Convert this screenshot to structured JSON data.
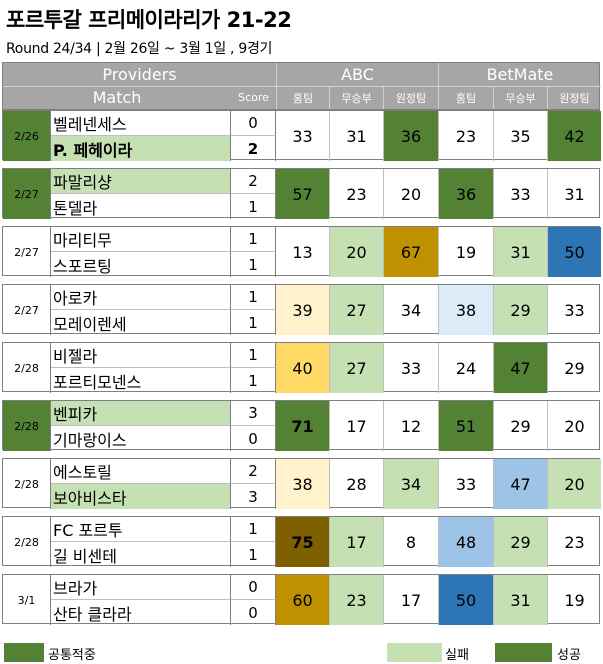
{
  "title": "포르투갈 프리메이라리가 21-22",
  "subtitle": "Round 24/34 | 2월 26일 ~ 3월 1일 , 9경기",
  "header": {
    "providers": "Providers",
    "abc": "ABC",
    "betmate": "BetMate",
    "match": "Match",
    "score": "Score",
    "sub": [
      "홈팀",
      "무승부",
      "원정팀",
      "홈팀",
      "무승부",
      "원정팀"
    ]
  },
  "matches": [
    {
      "date": "2/26",
      "home": "벨레넨세스",
      "away": "P. 페헤이라",
      "hs": "0",
      "as": "2",
      "values": [
        "33",
        "31",
        "36",
        "23",
        "35",
        "42"
      ]
    },
    {
      "date": "2/27",
      "home": "파말리샹",
      "away": "톤델라",
      "hs": "2",
      "as": "1",
      "values": [
        "57",
        "23",
        "20",
        "36",
        "33",
        "31"
      ]
    },
    {
      "date": "2/27",
      "home": "마리티무",
      "away": "스포르팅",
      "hs": "1",
      "as": "1",
      "values": [
        "13",
        "20",
        "67",
        "19",
        "31",
        "50"
      ]
    },
    {
      "date": "2/27",
      "home": "아로카",
      "away": "모레이렌세",
      "hs": "1",
      "as": "1",
      "values": [
        "39",
        "27",
        "34",
        "38",
        "29",
        "33"
      ]
    },
    {
      "date": "2/28",
      "home": "비젤라",
      "away": "포르티모넨스",
      "hs": "1",
      "as": "1",
      "values": [
        "40",
        "27",
        "33",
        "24",
        "47",
        "29"
      ]
    },
    {
      "date": "2/28",
      "home": "벤피카",
      "away": "기마랑이스",
      "hs": "3",
      "as": "0",
      "values": [
        "71",
        "17",
        "12",
        "51",
        "29",
        "20"
      ]
    },
    {
      "date": "2/28",
      "home": "에스토릴",
      "away": "보아비스타",
      "hs": "2",
      "as": "3",
      "values": [
        "38",
        "28",
        "34",
        "33",
        "47",
        "20"
      ]
    },
    {
      "date": "2/28",
      "home": "FC 포르투",
      "away": "길 비센테",
      "hs": "1",
      "as": "1",
      "values": [
        "75",
        "17",
        "8",
        "48",
        "29",
        "23"
      ]
    },
    {
      "date": "3/1",
      "home": "브라가",
      "away": "산타 클라라",
      "hs": "0",
      "as": "0",
      "values": [
        "60",
        "23",
        "17",
        "50",
        "31",
        "19"
      ]
    }
  ],
  "styles": [
    {
      "date_bg": "#548235",
      "home_bg": "",
      "away_bg": "#c5e0b3",
      "away_bold": true,
      "cells": [
        "",
        "",
        "#548235",
        "",
        "",
        "#548235"
      ],
      "bold_cells": []
    },
    {
      "date_bg": "#548235",
      "home_bg": "#c5e0b3",
      "away_bg": "",
      "away_bold": false,
      "cells": [
        "#548235",
        "",
        "",
        "#548235",
        "",
        ""
      ],
      "bold_cells": []
    },
    {
      "date_bg": "",
      "home_bg": "",
      "away_bg": "",
      "away_bold": false,
      "cells": [
        "",
        "#c5e0b3",
        "#bf9000",
        "",
        "#c5e0b3",
        "#2e75b6"
      ],
      "bold_cells": []
    },
    {
      "date_bg": "",
      "home_bg": "",
      "away_bg": "",
      "away_bold": false,
      "cells": [
        "#fff2cc",
        "#c5e0b3",
        "",
        "#ddebf7",
        "#c5e0b3",
        ""
      ],
      "bold_cells": []
    },
    {
      "date_bg": "",
      "home_bg": "",
      "away_bg": "",
      "away_bold": false,
      "cells": [
        "#ffd966",
        "#c5e0b3",
        "",
        "",
        "#548235",
        ""
      ],
      "bold_cells": []
    },
    {
      "date_bg": "#548235",
      "home_bg": "#c5e0b3",
      "away_bg": "",
      "away_bold": false,
      "cells": [
        "#548235",
        "",
        "",
        "#548235",
        "",
        ""
      ],
      "bold_cells": [
        0
      ]
    },
    {
      "date_bg": "",
      "home_bg": "",
      "away_bg": "#c5e0b3",
      "away_bold": false,
      "cells": [
        "#fff2cc",
        "",
        "#c5e0b3",
        "",
        "#9dc3e6",
        "#c5e0b3"
      ],
      "bold_cells": []
    },
    {
      "date_bg": "",
      "home_bg": "",
      "away_bg": "",
      "away_bold": false,
      "cells": [
        "#7f6000",
        "#c5e0b3",
        "",
        "#9dc3e6",
        "#c5e0b3",
        ""
      ],
      "bold_cells": [
        0
      ]
    },
    {
      "date_bg": "",
      "home_bg": "",
      "away_bg": "",
      "away_bold": false,
      "cells": [
        "#bf9000",
        "#c5e0b3",
        "",
        "#2e75b6",
        "#c5e0b3",
        ""
      ],
      "bold_cells": []
    }
  ],
  "legend": {
    "items": [
      {
        "label": "공통적중",
        "color": "#548235"
      },
      {
        "label": "실패",
        "color": "#c5e0b3"
      },
      {
        "label": "성공",
        "color": "#548235"
      }
    ]
  }
}
